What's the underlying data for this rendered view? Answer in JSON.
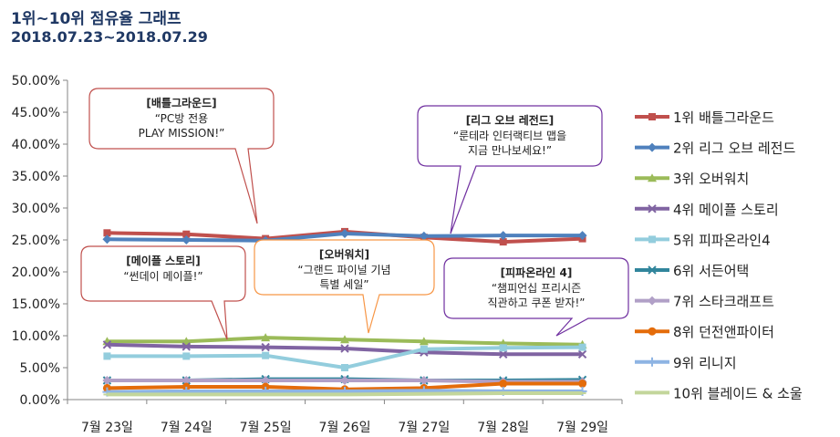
{
  "header": {
    "title": "1위~10위 점유율 그래프",
    "subtitle": "2018.07.23~2018.07.29"
  },
  "chart_data": {
    "type": "line",
    "title": "1위~10위 점유율 그래프",
    "subtitle": "2018.07.23~2018.07.29",
    "categories": [
      "7월 23일",
      "7월 24일",
      "7월 25일",
      "7월 26일",
      "7월 27일",
      "7월 28일",
      "7월 29일"
    ],
    "ylim": [
      0,
      50
    ],
    "yticks": [
      "0.00%",
      "5.00%",
      "10.00%",
      "15.00%",
      "20.00%",
      "25.00%",
      "30.00%",
      "35.00%",
      "40.00%",
      "45.00%",
      "50.00%"
    ],
    "grid": false,
    "legend_position": "right",
    "series": [
      {
        "name": "1위 배틀그라운드",
        "color": "#c0504d",
        "marker": "square",
        "values": [
          26.1,
          25.9,
          25.2,
          26.3,
          25.4,
          24.7,
          25.2
        ]
      },
      {
        "name": "2위 리그 오브 레전드",
        "color": "#4f81bd",
        "marker": "diamond",
        "values": [
          25.1,
          25.0,
          24.9,
          26.0,
          25.6,
          25.7,
          25.7
        ]
      },
      {
        "name": "3위 오버워치",
        "color": "#9bbb59",
        "marker": "triangle",
        "values": [
          9.1,
          9.1,
          9.7,
          9.4,
          9.1,
          8.8,
          8.6
        ]
      },
      {
        "name": "4위 메이플 스토리",
        "color": "#8064a2",
        "marker": "x",
        "values": [
          8.6,
          8.3,
          8.2,
          8.0,
          7.4,
          7.1,
          7.1
        ]
      },
      {
        "name": "5위 피파온라인4",
        "color": "#93cddd",
        "marker": "square",
        "values": [
          6.8,
          6.8,
          6.9,
          5.0,
          7.9,
          8.1,
          8.2
        ]
      },
      {
        "name": "6위 서든어택",
        "color": "#31859c",
        "marker": "x",
        "values": [
          3.0,
          3.0,
          3.2,
          3.2,
          3.0,
          3.0,
          3.1
        ]
      },
      {
        "name": "7위 스타크래프트",
        "color": "#b1a0c7",
        "marker": "diamond",
        "values": [
          3.0,
          3.0,
          3.0,
          3.0,
          3.0,
          2.8,
          2.8
        ]
      },
      {
        "name": "8위 던전앤파이터",
        "color": "#e46c0a",
        "marker": "circle",
        "values": [
          1.8,
          2.0,
          2.0,
          1.6,
          1.8,
          2.5,
          2.5
        ]
      },
      {
        "name": "9위 리니지",
        "color": "#8eb4e3",
        "marker": "plus",
        "values": [
          1.2,
          1.3,
          1.3,
          1.3,
          1.4,
          1.3,
          1.3
        ]
      },
      {
        "name": "10위 블레이드 & 소울",
        "color": "#c3d69b",
        "marker": "dash",
        "values": [
          0.8,
          0.8,
          0.8,
          0.8,
          0.9,
          1.0,
          1.0
        ]
      }
    ],
    "annotations": [
      {
        "title": "[배틀그라운드]",
        "lines": [
          "“PC방 전용",
          "PLAY MISSION!”"
        ],
        "color": "#c0504d"
      },
      {
        "title": "[리그 오브 레전드]",
        "lines": [
          "“룬테라 인터랙티브 맵을",
          "지금 만나보세요!”"
        ],
        "color": "#7030a0"
      },
      {
        "title": "[메이플 스토리]",
        "lines": [
          "“썬데이 메이플!”"
        ],
        "color": "#c0504d"
      },
      {
        "title": "[오버워치]",
        "lines": [
          "“그랜드 파이널 기념",
          "특별 세일”"
        ],
        "color": "#f79646"
      },
      {
        "title": "[피파온라인 4]",
        "lines": [
          "“챔피언십 프리시즌",
          "직관하고 쿠폰 받자!”"
        ],
        "color": "#7030a0"
      }
    ]
  }
}
